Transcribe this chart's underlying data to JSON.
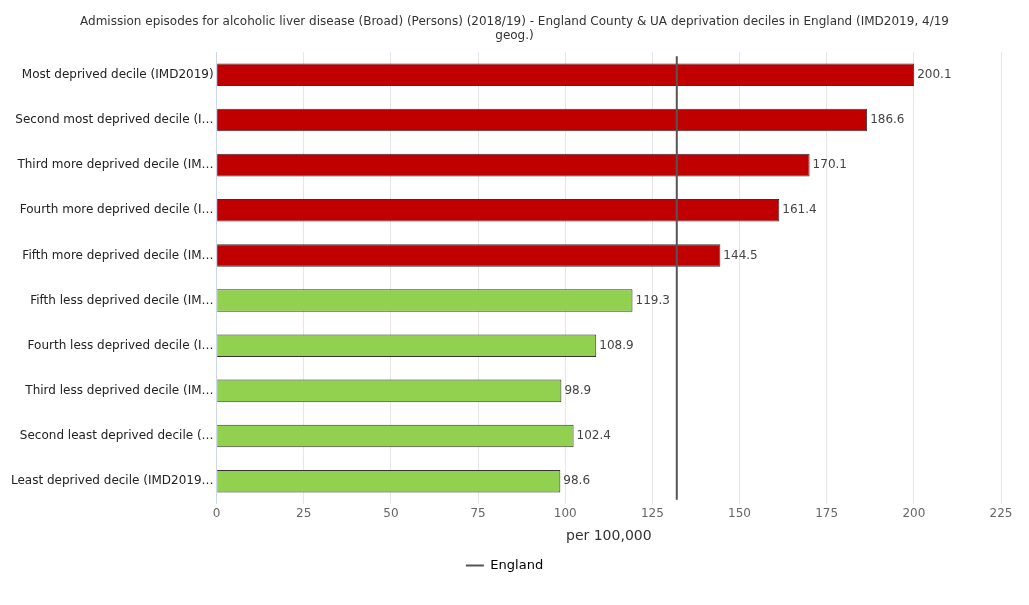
{
  "chart_data": {
    "type": "bar",
    "orientation": "horizontal",
    "title": "Admission episodes for alcoholic liver disease (Broad) (Persons) (2018/19) - England County & UA deprivation deciles in England (IMD2019, 4/19 geog.)",
    "categories": [
      "Most deprived decile (IMD2019)",
      "Second most deprived decile (I…",
      "Third more deprived decile (IM…",
      "Fourth more deprived decile (I…",
      "Fifth more deprived decile (IM…",
      "Fifth less deprived decile (IM…",
      "Fourth less deprived decile (I…",
      "Third less deprived decile (IM…",
      "Second least deprived decile (…",
      "Least deprived decile (IMD2019…"
    ],
    "values": [
      200.1,
      186.6,
      170.1,
      161.4,
      144.5,
      119.3,
      108.9,
      98.9,
      102.4,
      98.6
    ],
    "colors": [
      "#c00000",
      "#c00000",
      "#c00000",
      "#c00000",
      "#c00000",
      "#92d050",
      "#92d050",
      "#92d050",
      "#92d050",
      "#92d050"
    ],
    "xlabel": "per 100,000",
    "xlim": [
      0,
      225
    ],
    "xticks": [
      0,
      25,
      50,
      75,
      100,
      125,
      150,
      175,
      200,
      225
    ],
    "ref_lines": [
      {
        "axis": "x",
        "value": 132,
        "label": "England",
        "color": "#555555"
      }
    ],
    "data_labels": true,
    "grid": "x",
    "legend": "bottom"
  }
}
